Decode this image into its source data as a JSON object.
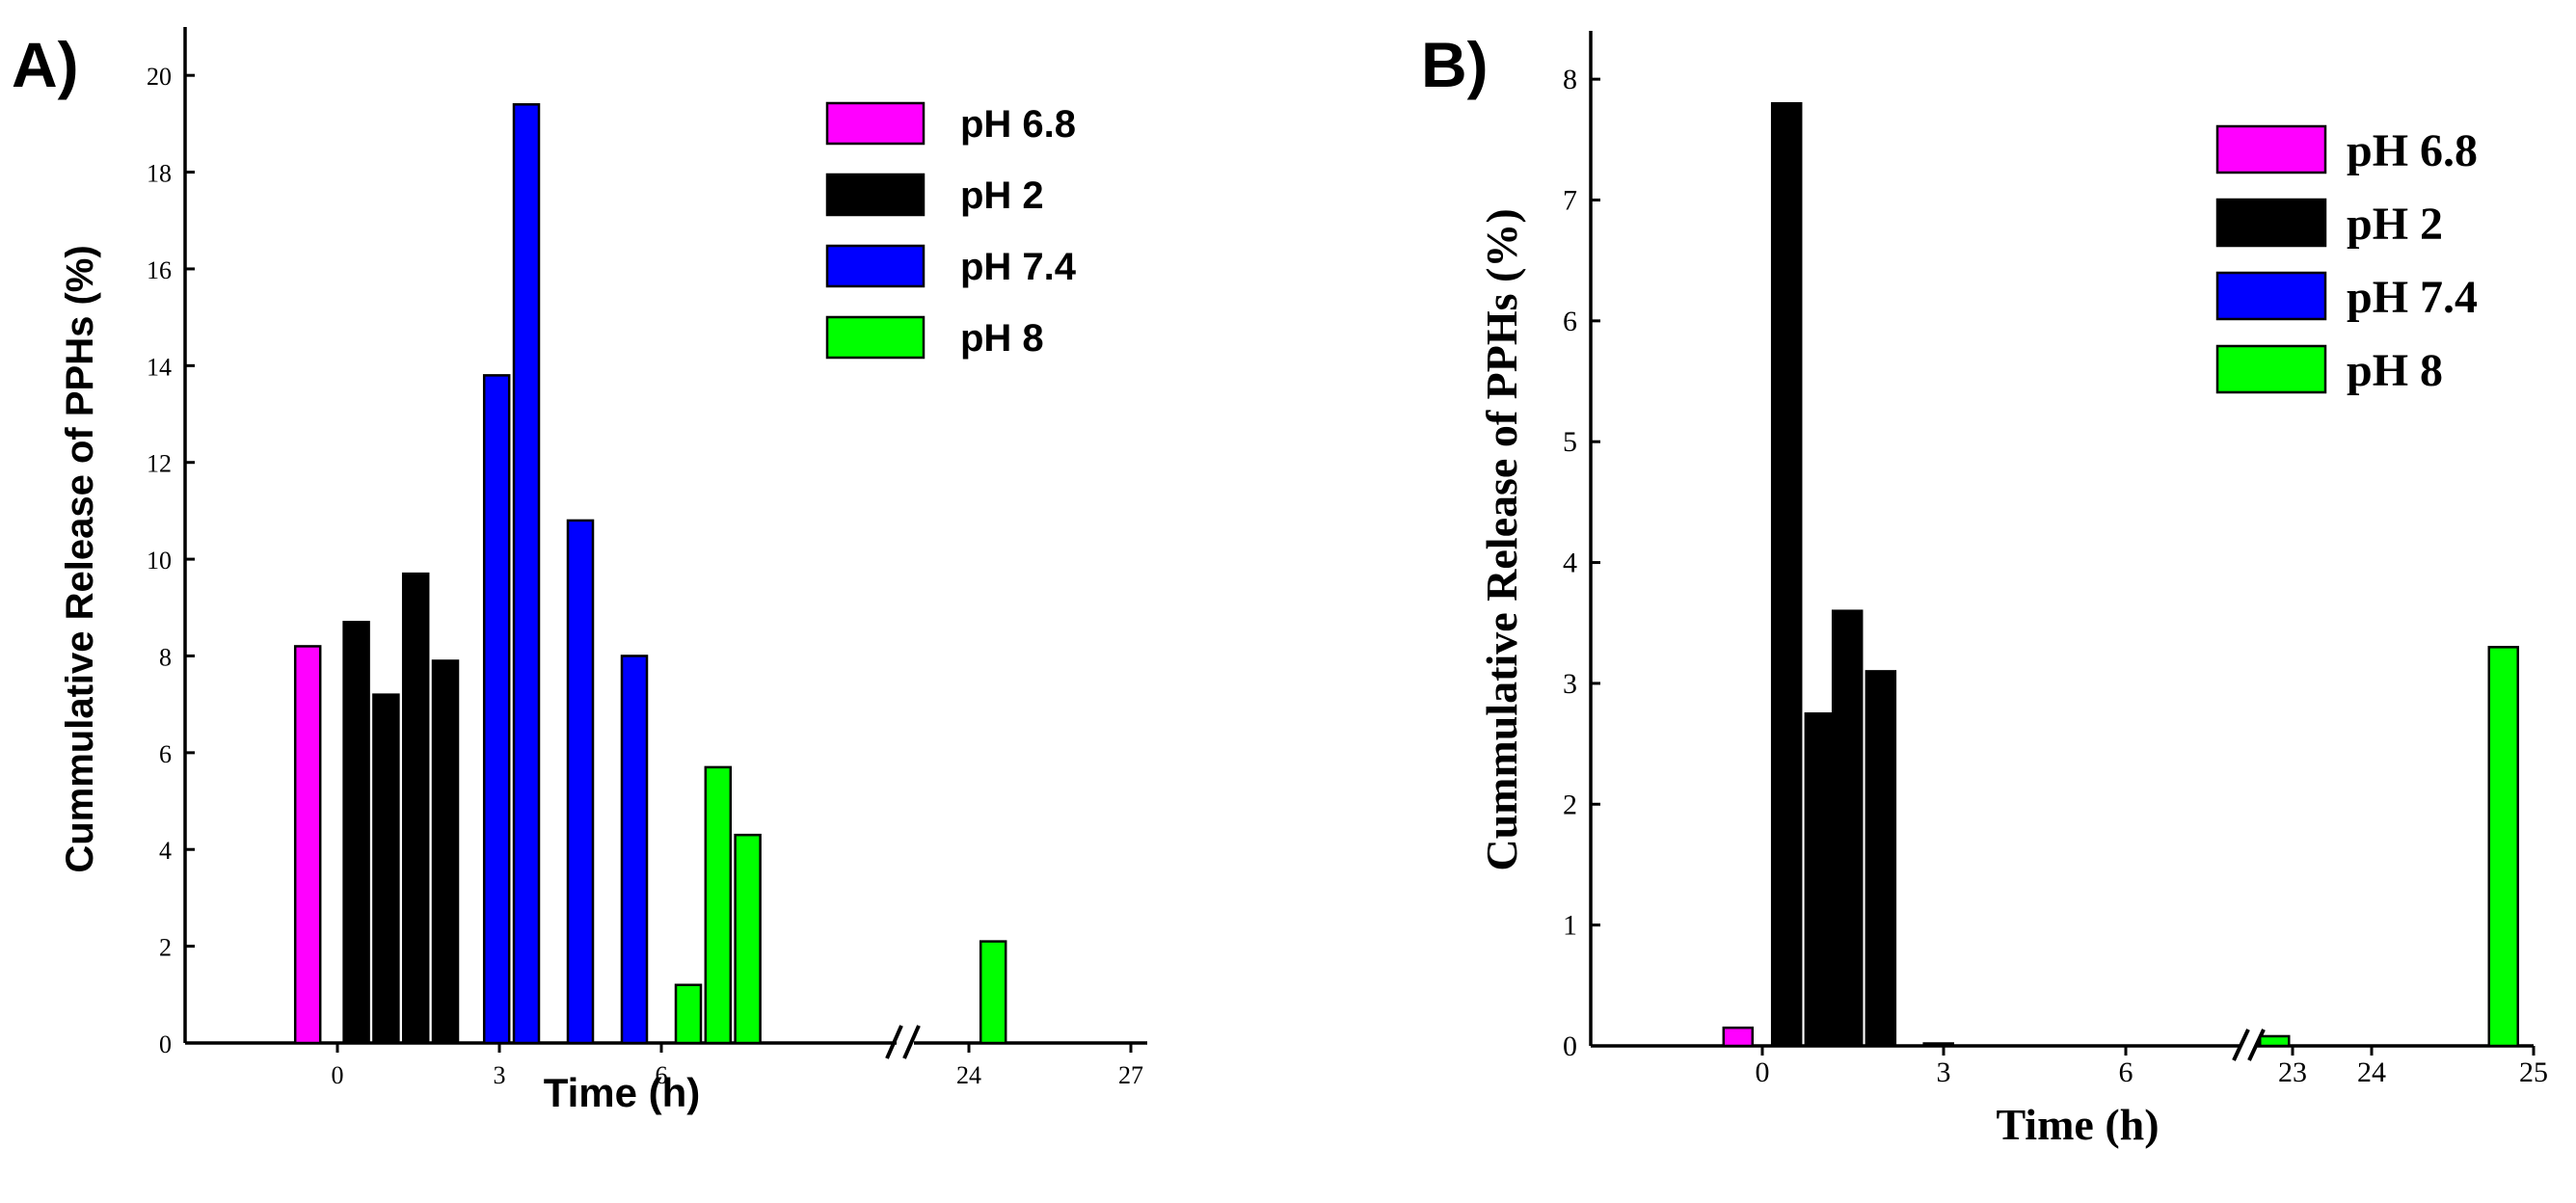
{
  "colors": {
    "ph68": "#ff00ff",
    "ph2": "#000000",
    "ph74": "#0000ff",
    "ph8": "#00ff00"
  },
  "chart_data": [
    {
      "panel": "A)",
      "type": "bar",
      "xlabel": "Time (h)",
      "ylabel": "Cummulative Release of PPHs (%)",
      "ylim": [
        0,
        21
      ],
      "yticks": [
        "0",
        "2",
        "4",
        "6",
        "8",
        "10",
        "12",
        "14",
        "16",
        "18",
        "20"
      ],
      "xticks": [
        "0",
        "3",
        "6",
        "24",
        "27"
      ],
      "axis_break": "//",
      "legend": [
        {
          "label": "pH 6.8",
          "color_key": "ph68"
        },
        {
          "label": "pH 2",
          "color_key": "ph2"
        },
        {
          "label": "pH 7.4",
          "color_key": "ph74"
        },
        {
          "label": "pH 8",
          "color_key": "ph8"
        }
      ],
      "bars": [
        {
          "x": -0.55,
          "value": 8.2,
          "color_key": "ph68"
        },
        {
          "x": 0.35,
          "value": 8.7,
          "color_key": "ph2"
        },
        {
          "x": 0.9,
          "value": 7.2,
          "color_key": "ph2"
        },
        {
          "x": 1.45,
          "value": 9.7,
          "color_key": "ph2"
        },
        {
          "x": 2.0,
          "value": 7.9,
          "color_key": "ph2"
        },
        {
          "x": 2.95,
          "value": 13.8,
          "color_key": "ph74"
        },
        {
          "x": 3.5,
          "value": 19.4,
          "color_key": "ph74"
        },
        {
          "x": 4.5,
          "value": 10.8,
          "color_key": "ph74"
        },
        {
          "x": 5.5,
          "value": 8.0,
          "color_key": "ph74"
        },
        {
          "x": 6.5,
          "value": 1.2,
          "color_key": "ph8"
        },
        {
          "x": 7.05,
          "value": 5.7,
          "color_key": "ph8"
        },
        {
          "x": 7.6,
          "value": 4.3,
          "color_key": "ph8"
        },
        {
          "x": 24.45,
          "value": 2.1,
          "color_key": "ph8"
        }
      ]
    },
    {
      "panel": "B)",
      "type": "bar",
      "xlabel": "Time (h)",
      "ylabel": "Cummulative Release of PPHs (%)",
      "ylim": [
        0,
        8.4
      ],
      "yticks": [
        "0",
        "1",
        "2",
        "3",
        "4",
        "5",
        "6",
        "7",
        "8"
      ],
      "xticks": [
        "0",
        "3",
        "6",
        "23",
        "24",
        "25"
      ],
      "axis_break": "//",
      "legend": [
        {
          "label": "pH 6.8",
          "color_key": "ph68"
        },
        {
          "label": "pH 2",
          "color_key": "ph2"
        },
        {
          "label": "pH 7.4",
          "color_key": "ph74"
        },
        {
          "label": "pH 8",
          "color_key": "ph8"
        }
      ],
      "bars": [
        {
          "x": -0.4,
          "value": 0.15,
          "color_key": "ph68"
        },
        {
          "x": 0.4,
          "value": 7.8,
          "color_key": "ph2"
        },
        {
          "x": 0.95,
          "value": 2.75,
          "color_key": "ph2"
        },
        {
          "x": 1.4,
          "value": 3.6,
          "color_key": "ph2"
        },
        {
          "x": 1.95,
          "value": 3.1,
          "color_key": "ph2"
        },
        {
          "x": 2.9,
          "value": 0.02,
          "color_key": "ph2"
        },
        {
          "x": 22.85,
          "value": 0.08,
          "color_key": "ph8"
        },
        {
          "x": 24.75,
          "value": 3.3,
          "color_key": "ph8"
        }
      ]
    }
  ]
}
